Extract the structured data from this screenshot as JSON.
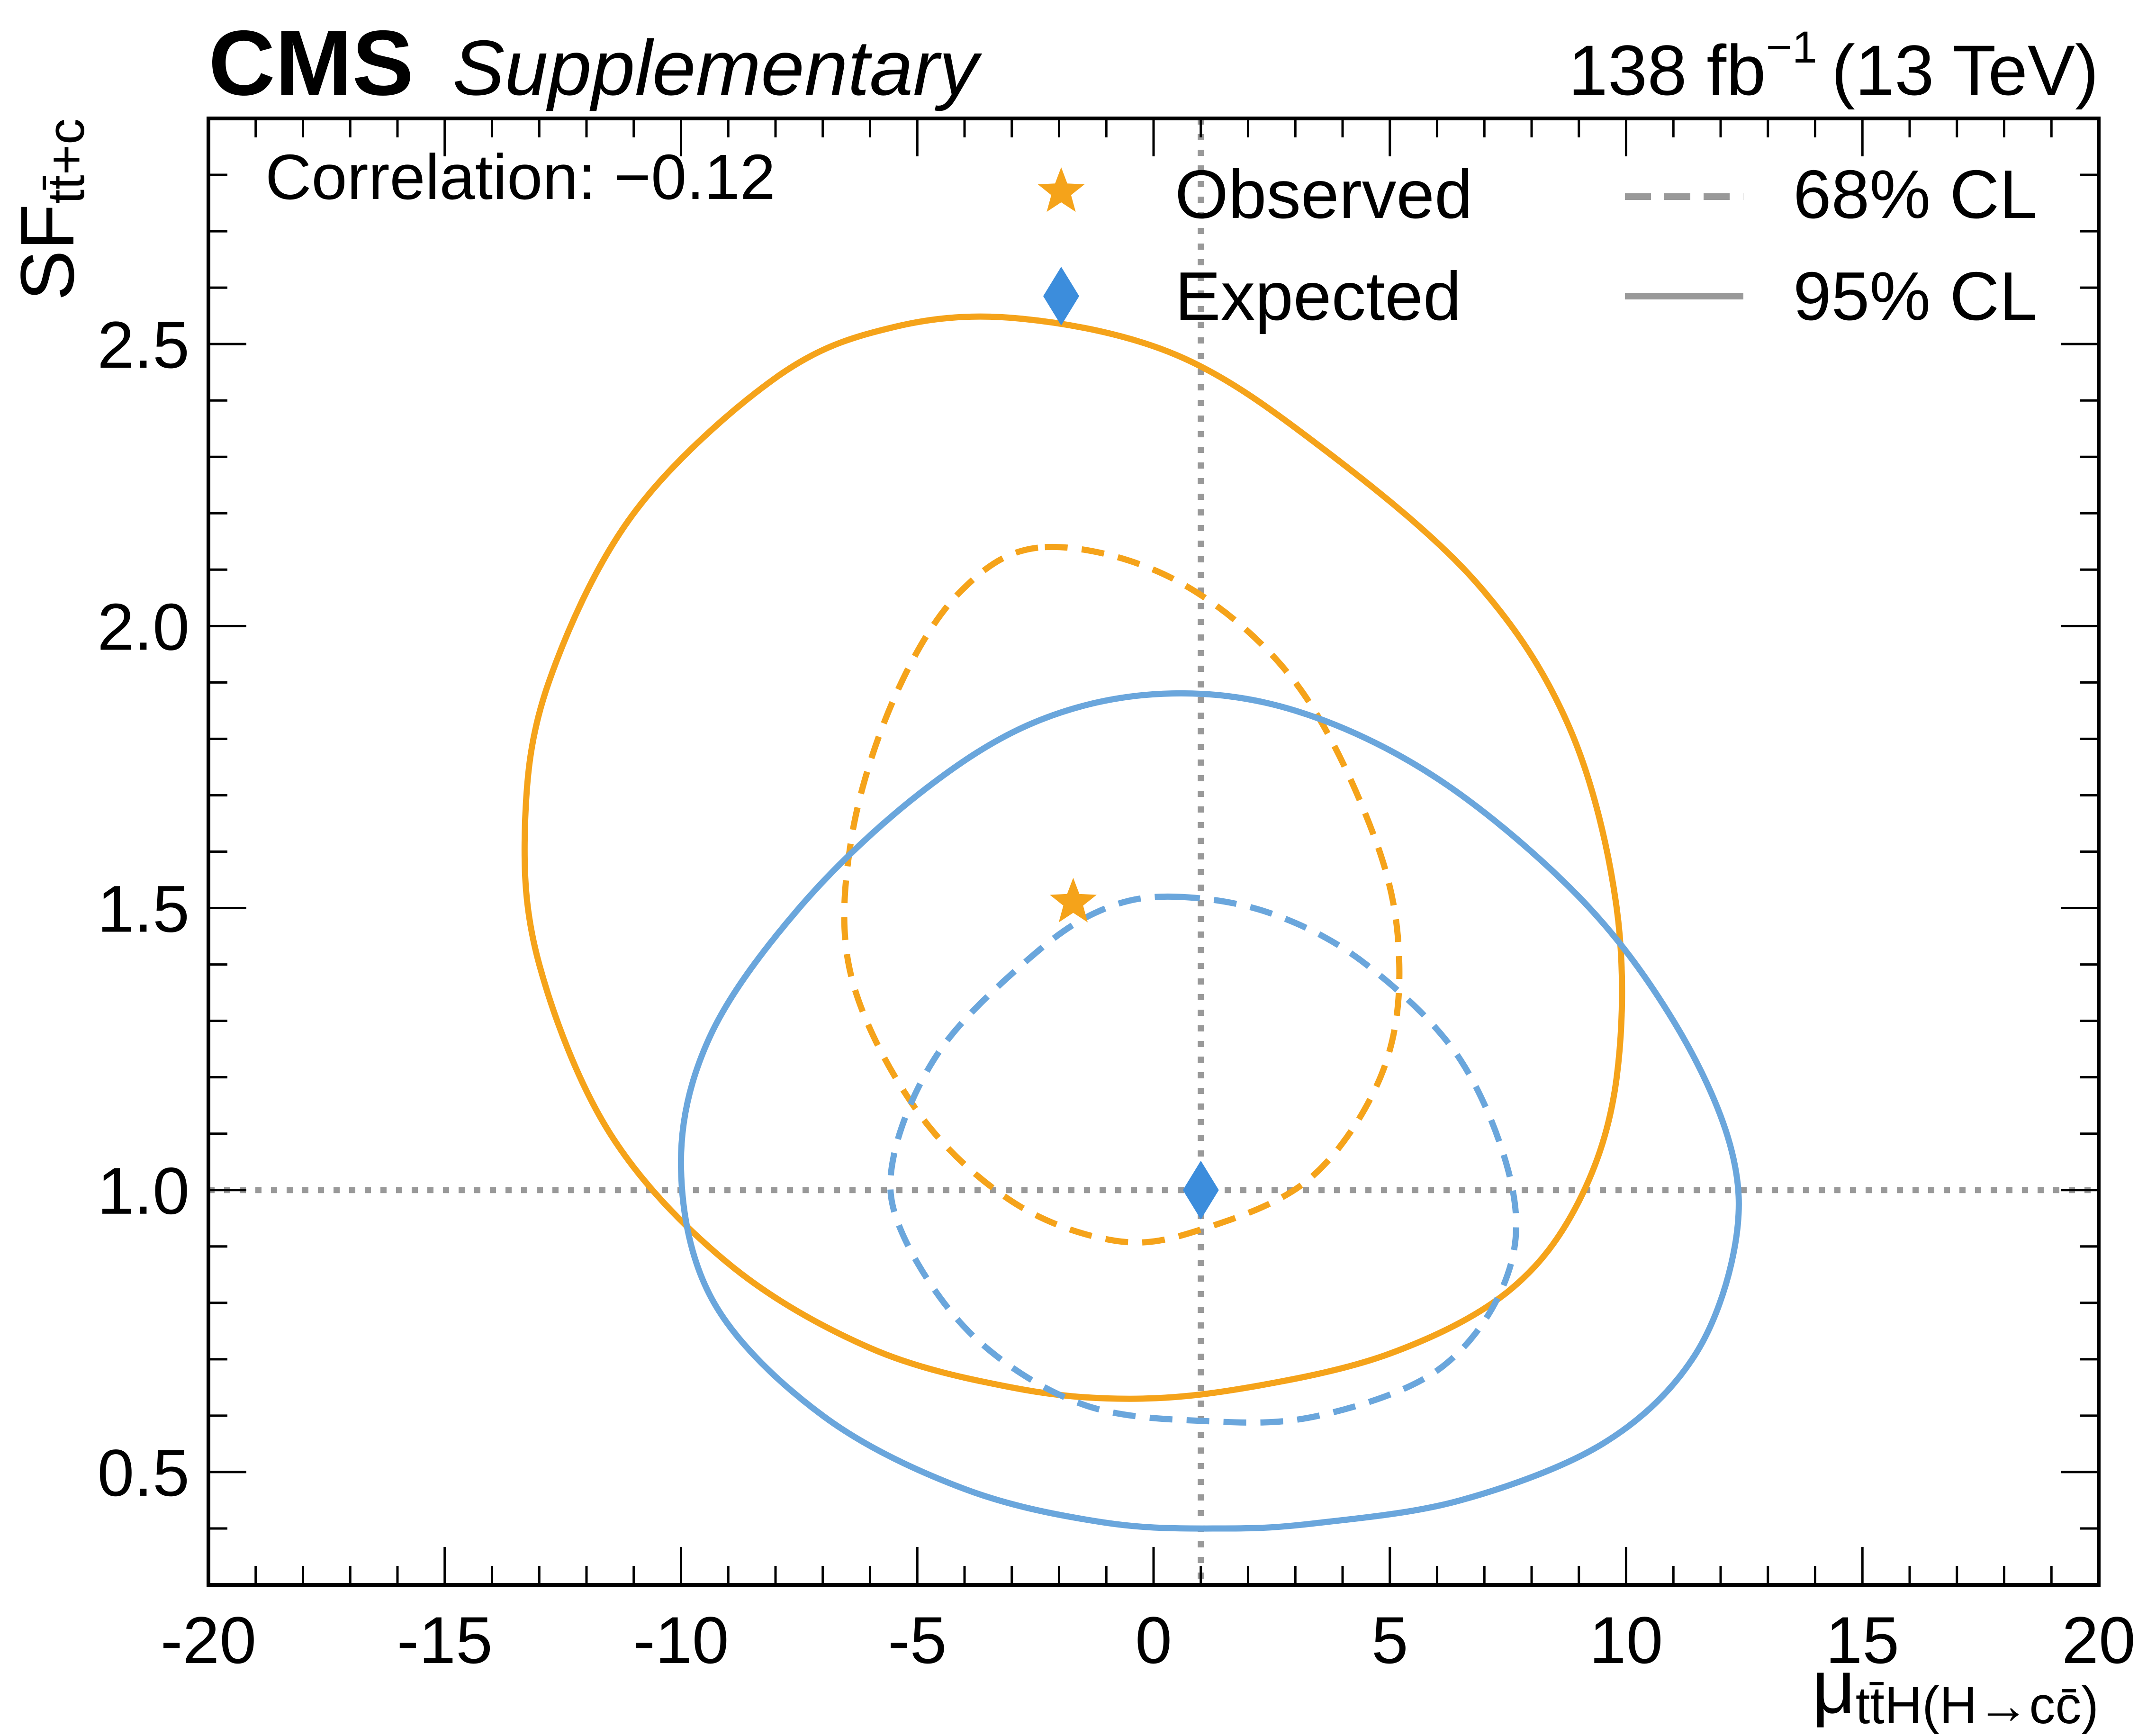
{
  "header": {
    "experiment": "CMS",
    "tag": "Supplementary",
    "lumi_value": "138 fb",
    "lumi_exp": "−1",
    "energy": "(13 TeV)"
  },
  "annotation": "Correlation: −0.12",
  "legend": {
    "observed": "Observed",
    "expected": "Expected",
    "cl68": "68% CL",
    "cl95": "95% CL"
  },
  "colors": {
    "observed": "#f5a31a",
    "expected": "#6aa6dc",
    "expected_marker": "#3c8ddc",
    "reference": "#999999",
    "legend_line": "#999999"
  },
  "chart_data": {
    "type": "scatter",
    "xlabel": "μ",
    "xlabel_sub": "tt̄H(H→cc̄)",
    "ylabel": "SF",
    "ylabel_sub": "tt̄+c",
    "xlim": [
      -20,
      20
    ],
    "ylim": [
      0.3,
      2.9
    ],
    "xticks": [
      -20,
      -15,
      -10,
      -5,
      0,
      5,
      10,
      15,
      20
    ],
    "xtick_labels": [
      "-20",
      "-15",
      "-10",
      "-5",
      "0",
      "5",
      "10",
      "15",
      "20"
    ],
    "yticks": [
      0.5,
      1.0,
      1.5,
      2.0,
      2.5
    ],
    "ytick_labels": [
      "0.5",
      "1.0",
      "1.5",
      "2.0",
      "2.5"
    ],
    "reference_lines": {
      "x": 1.0,
      "y": 1.0
    },
    "points": [
      {
        "name": "Observed",
        "marker": "star",
        "x": -1.7,
        "y": 1.51
      },
      {
        "name": "Expected",
        "marker": "diamond",
        "x": 1.0,
        "y": 1.0
      }
    ],
    "contours": [
      {
        "name": "Observed 68% CL",
        "style": "dashed",
        "color": "observed",
        "points": [
          [
            -2.3,
            2.14
          ],
          [
            0.5,
            2.08
          ],
          [
            3.0,
            1.9
          ],
          [
            4.7,
            1.62
          ],
          [
            5.2,
            1.4
          ],
          [
            4.8,
            1.2
          ],
          [
            3.3,
            1.02
          ],
          [
            1.0,
            0.93
          ],
          [
            -0.8,
            0.91
          ],
          [
            -3.0,
            0.98
          ],
          [
            -5.0,
            1.14
          ],
          [
            -6.4,
            1.38
          ],
          [
            -6.4,
            1.62
          ],
          [
            -5.5,
            1.87
          ],
          [
            -4.1,
            2.06
          ]
        ]
      },
      {
        "name": "Observed 95% CL",
        "style": "solid",
        "color": "observed",
        "points": [
          [
            -2.8,
            2.545
          ],
          [
            0.5,
            2.48
          ],
          [
            3.5,
            2.32
          ],
          [
            6.8,
            2.08
          ],
          [
            8.8,
            1.82
          ],
          [
            9.8,
            1.5
          ],
          [
            9.8,
            1.2
          ],
          [
            9.0,
            0.98
          ],
          [
            7.5,
            0.82
          ],
          [
            5.0,
            0.71
          ],
          [
            2.0,
            0.65
          ],
          [
            -0.5,
            0.63
          ],
          [
            -3.0,
            0.65
          ],
          [
            -6.0,
            0.72
          ],
          [
            -9.0,
            0.87
          ],
          [
            -11.5,
            1.1
          ],
          [
            -13.0,
            1.4
          ],
          [
            -13.3,
            1.65
          ],
          [
            -12.8,
            1.9
          ],
          [
            -11.0,
            2.2
          ],
          [
            -8.0,
            2.44
          ],
          [
            -5.5,
            2.53
          ]
        ]
      },
      {
        "name": "Expected 68% CL",
        "style": "dashed",
        "color": "expected",
        "points": [
          [
            0.5,
            1.52
          ],
          [
            2.5,
            1.49
          ],
          [
            4.5,
            1.4
          ],
          [
            6.5,
            1.23
          ],
          [
            7.6,
            1.0
          ],
          [
            7.4,
            0.83
          ],
          [
            6.0,
            0.68
          ],
          [
            3.5,
            0.6
          ],
          [
            1.2,
            0.59
          ],
          [
            -1.5,
            0.62
          ],
          [
            -3.8,
            0.74
          ],
          [
            -5.3,
            0.92
          ],
          [
            -5.5,
            1.06
          ],
          [
            -4.5,
            1.25
          ],
          [
            -2.5,
            1.42
          ],
          [
            -1.0,
            1.5
          ]
        ]
      },
      {
        "name": "Expected 95% CL",
        "style": "solid",
        "color": "expected",
        "points": [
          [
            0.2,
            1.88
          ],
          [
            3.0,
            1.85
          ],
          [
            6.0,
            1.73
          ],
          [
            9.0,
            1.52
          ],
          [
            11.0,
            1.3
          ],
          [
            12.2,
            1.08
          ],
          [
            12.3,
            0.9
          ],
          [
            11.4,
            0.7
          ],
          [
            9.5,
            0.55
          ],
          [
            6.5,
            0.45
          ],
          [
            3.5,
            0.41
          ],
          [
            1.5,
            0.4
          ],
          [
            -1.0,
            0.41
          ],
          [
            -4.0,
            0.47
          ],
          [
            -7.0,
            0.6
          ],
          [
            -9.3,
            0.8
          ],
          [
            -10.0,
            1.04
          ],
          [
            -9.4,
            1.27
          ],
          [
            -7.5,
            1.5
          ],
          [
            -5.0,
            1.7
          ],
          [
            -2.5,
            1.83
          ]
        ]
      }
    ]
  }
}
